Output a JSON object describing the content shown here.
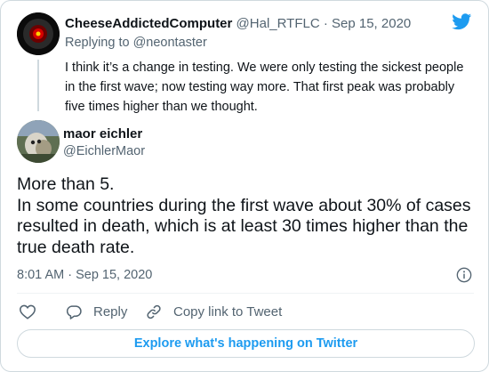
{
  "parent_tweet": {
    "display_name": "CheeseAddictedComputer",
    "meta": "@Hal_RTFLC · Sep 15, 2020",
    "replying_prefix": "Replying to",
    "replying_handle": "@neontaster",
    "text": "I think it’s a change in testing. We were only testing the sickest people in the first wave; now testing way more. That first peak was probably five times higher than we thought."
  },
  "main_tweet": {
    "display_name": "maor eichler",
    "handle": "@EichlerMaor",
    "text_line1": "More than 5.",
    "text_line2": "In some countries during the first wave about 30% of cases resulted in death, which is at least 30 times higher than the true death rate.",
    "timestamp": "8:01 AM · Sep 15, 2020"
  },
  "actions": {
    "reply_label": "Reply",
    "copy_label": "Copy link to Tweet"
  },
  "explore_label": "Explore what's happening on Twitter",
  "colors": {
    "accent": "#1d9bf0",
    "muted_text": "#536471",
    "border": "#cfd9de"
  },
  "icons": [
    "twitter-bird-icon",
    "info-icon",
    "heart-icon",
    "reply-icon",
    "link-icon"
  ]
}
